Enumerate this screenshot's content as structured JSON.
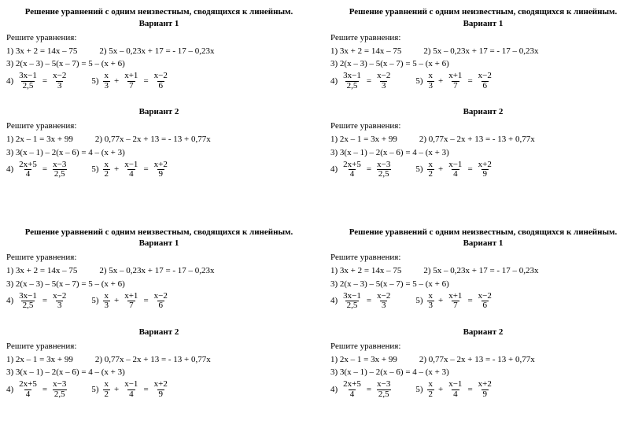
{
  "title": "Решение уравнений с одним неизвестным, сводящихся к линейным.",
  "variant1_label": "Вариант 1",
  "variant2_label": "Вариант 2",
  "prompt": "Решите уравнения:",
  "v1": {
    "q1": "1) 3x + 2 = 14x – 75",
    "q2": "2) 5x – 0,23x + 17 = - 17 – 0,23x",
    "q3": "3) 2(x – 3) – 5(x – 7) = 5 – (x + 6)",
    "q4_label": "4)",
    "q4_frac1_num": "3x−1",
    "q4_frac1_den": "2,5",
    "q4_frac2_num": "x−2",
    "q4_frac2_den": "3",
    "q5_label": "5)",
    "q5_frac1_num": "x",
    "q5_frac1_den": "3",
    "q5_frac2_num": "x+1",
    "q5_frac2_den": "7",
    "q5_frac3_num": "x−2",
    "q5_frac3_den": "6"
  },
  "v2": {
    "q1": "1) 2x – 1 = 3x + 99",
    "q2": "2) 0,77x – 2x + 13 = - 13 + 0,77x",
    "q3": "3) 3(x – 1) – 2(x – 6) = 4 – (x + 3)",
    "q4_label": "4)",
    "q4_frac1_num": "2x+5",
    "q4_frac1_den": "4",
    "q4_frac2_num": "x−3",
    "q4_frac2_den": "2,5",
    "q5_label": "5)",
    "q5_frac1_num": "x",
    "q5_frac1_den": "2",
    "q5_frac2_num": "x−1",
    "q5_frac2_den": "4",
    "q5_frac3_num": "x+2",
    "q5_frac3_den": "9"
  },
  "plus": "+",
  "equals": "="
}
